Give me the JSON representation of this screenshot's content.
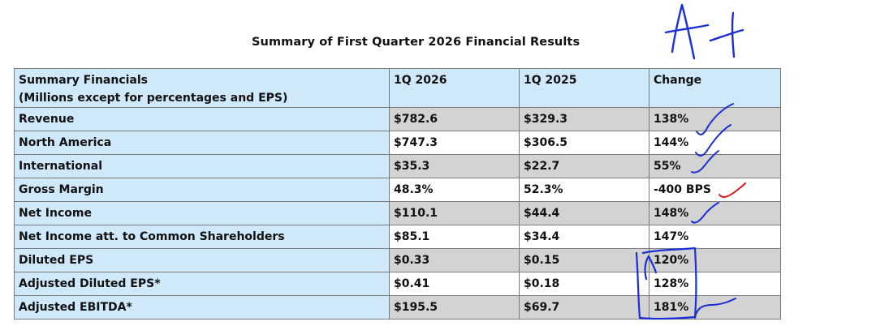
{
  "title": "Summary of First Quarter 2026 Financial Results",
  "table": {
    "header": {
      "label_line1": "Summary Financials",
      "label_line2": "(Millions except for percentages and EPS)",
      "col1": "1Q 2026",
      "col2": "1Q 2025",
      "col3": "Change"
    },
    "rows": [
      {
        "label": "Revenue",
        "v2026": "$782.6",
        "v2025": "$329.3",
        "change": "138%",
        "shaded": true
      },
      {
        "label": "North America",
        "v2026": "$747.3",
        "v2025": "$306.5",
        "change": "144%",
        "shaded": false
      },
      {
        "label": "International",
        "v2026": "$35.3",
        "v2025": "$22.7",
        "change": "55%",
        "shaded": true
      },
      {
        "label": "Gross Margin",
        "v2026": "48.3%",
        "v2025": "52.3%",
        "change": "-400 BPS",
        "shaded": false
      },
      {
        "label": "Net Income",
        "v2026": "$110.1",
        "v2025": "$44.4",
        "change": "148%",
        "shaded": true
      },
      {
        "label": "Net Income att. to Common Shareholders",
        "v2026": "$85.1",
        "v2025": "$34.4",
        "change": "147%",
        "shaded": false
      },
      {
        "label": "Diluted EPS",
        "v2026": "$0.33",
        "v2025": "$0.15",
        "change": "120%",
        "shaded": true
      },
      {
        "label": "Adjusted Diluted EPS*",
        "v2026": "$0.41",
        "v2025": "$0.18",
        "change": "128%",
        "shaded": false
      },
      {
        "label": "Adjusted EBITDA*",
        "v2026": "$195.5",
        "v2025": "$69.7",
        "change": "181%",
        "shaded": true
      }
    ]
  },
  "annotations": {
    "grade_text": "A+",
    "ink_blue": "#1a2fd6",
    "ink_red": "#e0161a"
  }
}
